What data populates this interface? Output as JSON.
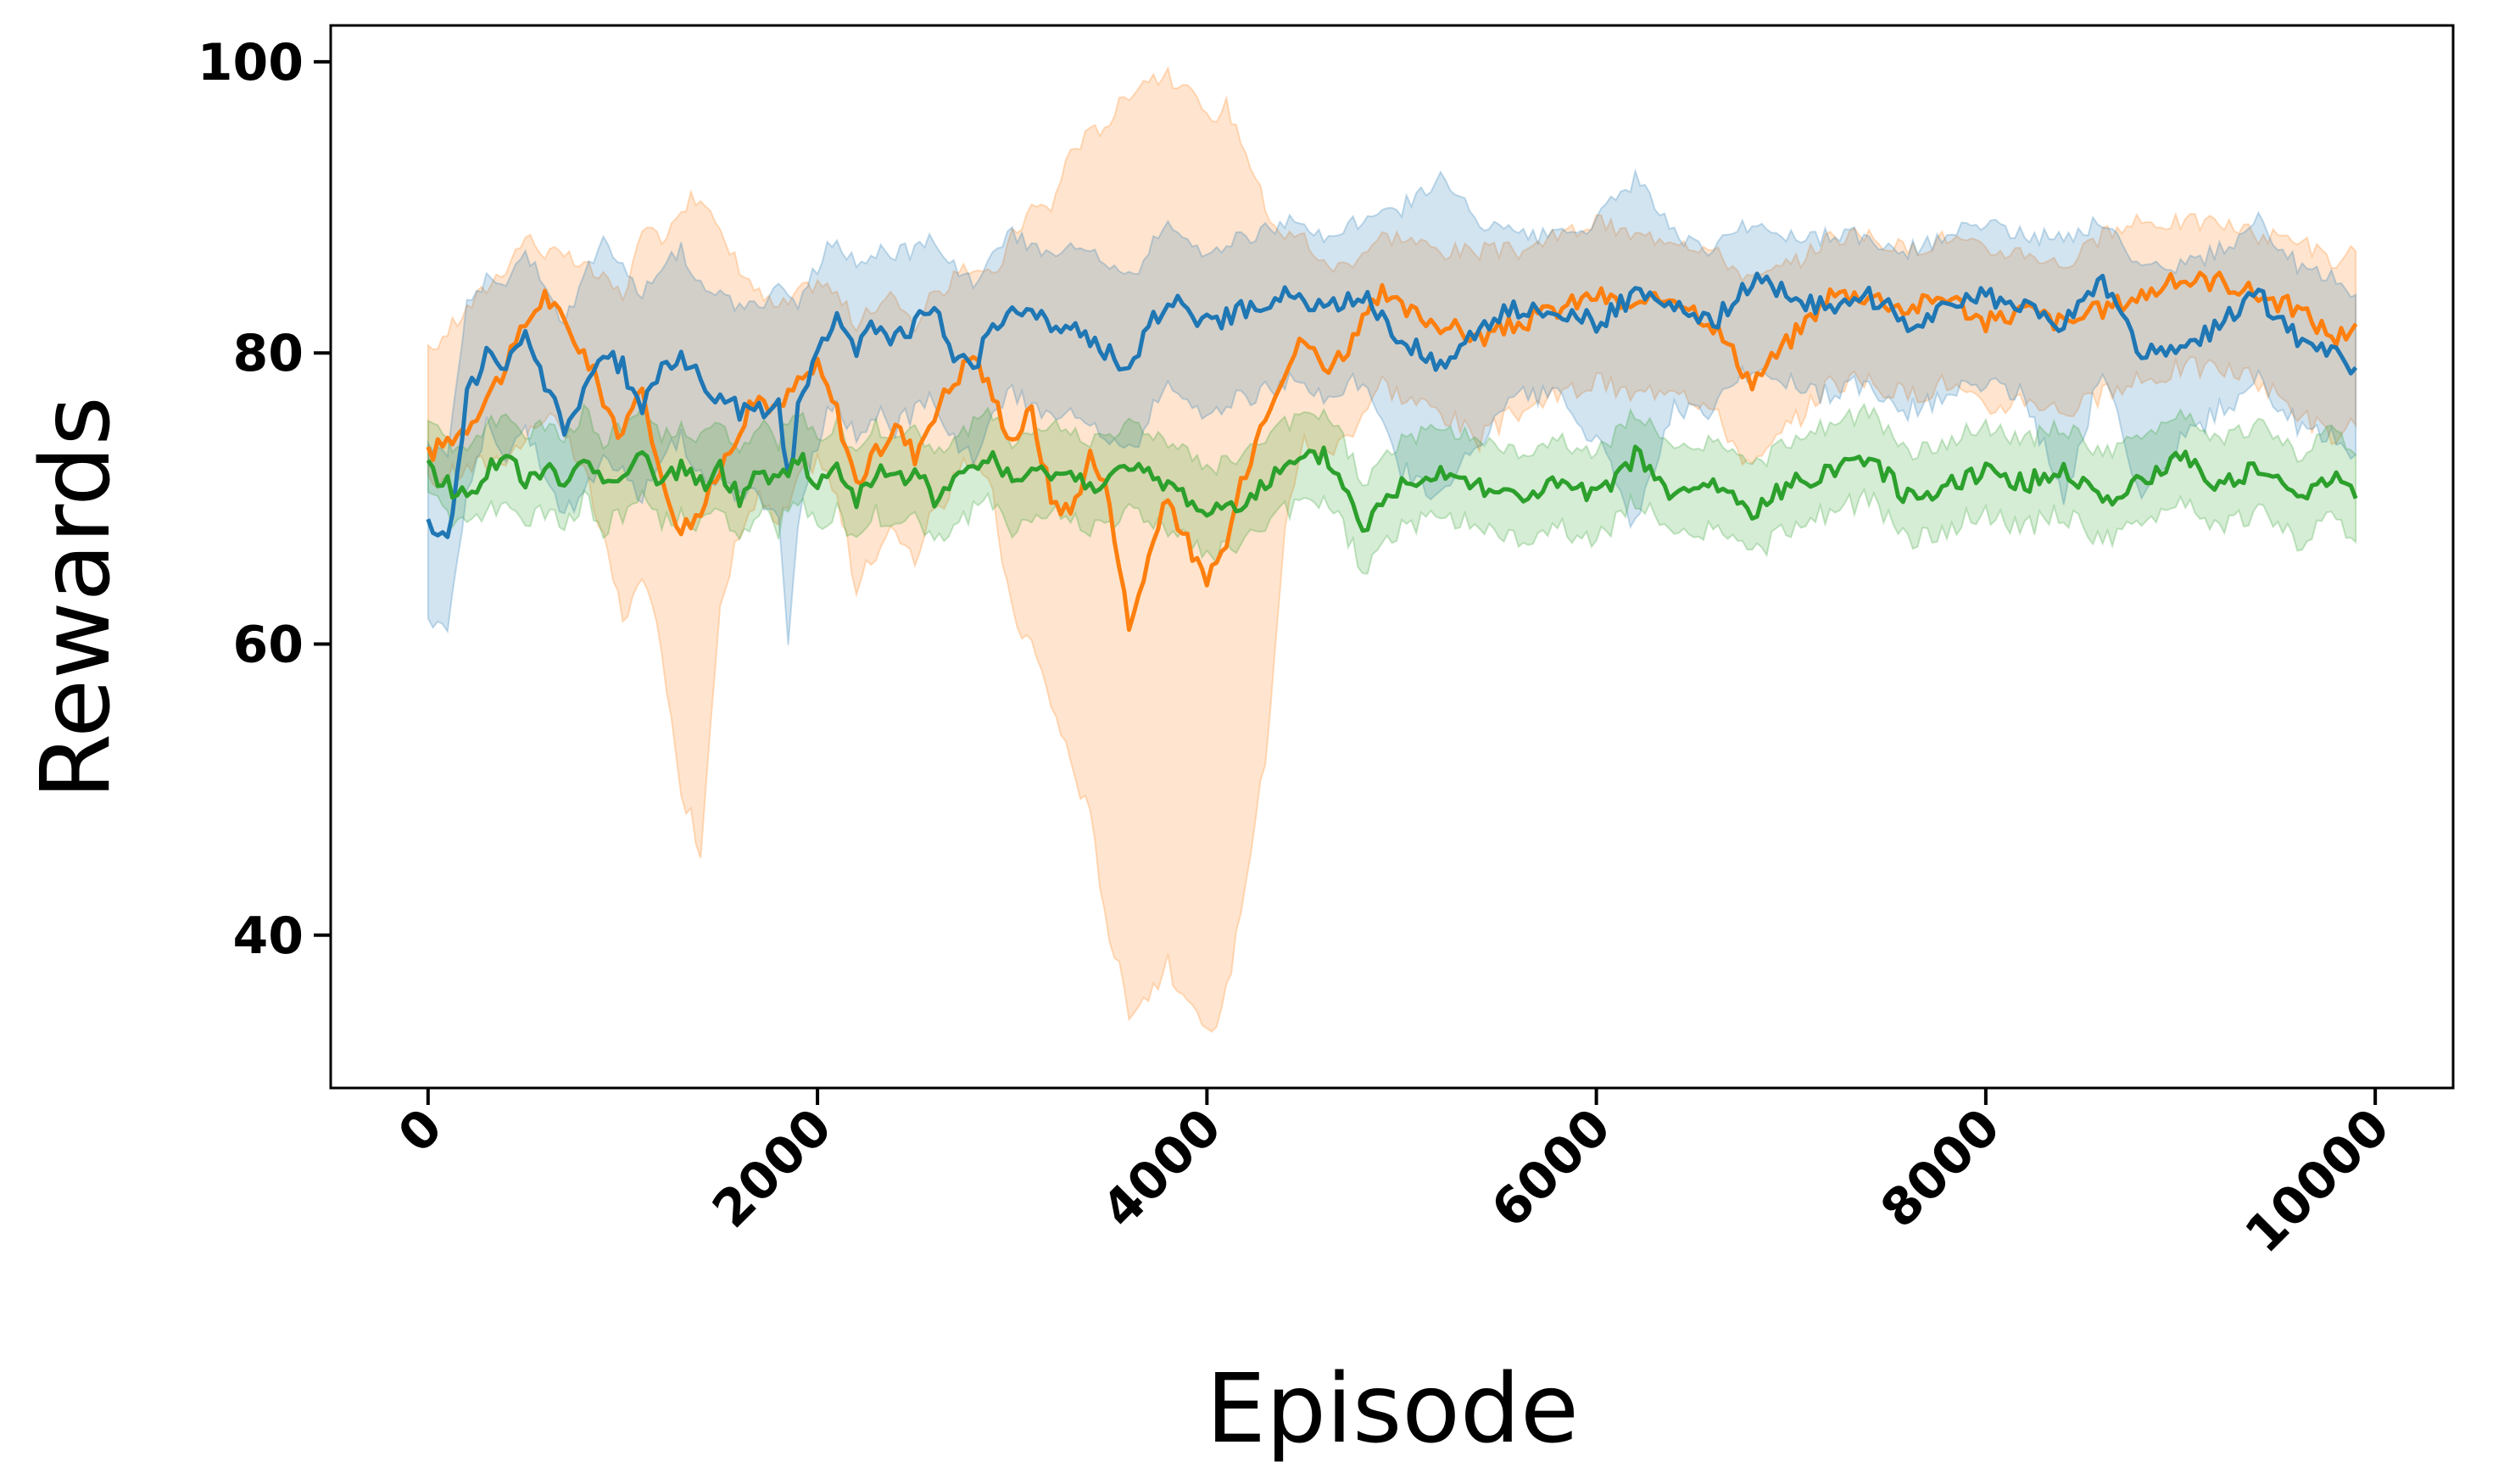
{
  "chart_data": {
    "type": "line",
    "title": "",
    "xlabel": "Episode",
    "ylabel": "Rewards",
    "xlim": [
      -500,
      10400
    ],
    "ylim": [
      29.5,
      102.5
    ],
    "x_ticks": [
      0,
      2000,
      4000,
      6000,
      8000,
      10000
    ],
    "y_ticks": [
      40,
      60,
      80,
      100
    ],
    "x_tick_rotation": 45,
    "grid": false,
    "legend": "none",
    "series": [
      {
        "color": "#ff7f0e",
        "fill_color": "#ff7f0e",
        "points": [
          [
            0,
            73,
            71,
            80
          ],
          [
            200,
            75,
            72,
            83
          ],
          [
            400,
            79,
            73,
            86
          ],
          [
            500,
            82,
            74,
            88
          ],
          [
            600,
            84,
            76,
            87
          ],
          [
            800,
            80,
            72,
            86
          ],
          [
            1000,
            74,
            62,
            84
          ],
          [
            1100,
            78,
            64,
            88
          ],
          [
            1200,
            71,
            60,
            88
          ],
          [
            1300,
            68,
            50,
            90
          ],
          [
            1400,
            69,
            46,
            91
          ],
          [
            1500,
            72,
            62,
            88
          ],
          [
            1600,
            75,
            68,
            86
          ],
          [
            1700,
            77,
            70,
            84
          ],
          [
            1800,
            76,
            68,
            83
          ],
          [
            1900,
            78,
            71,
            84
          ],
          [
            2000,
            79,
            73,
            85
          ],
          [
            2100,
            76,
            70,
            84
          ],
          [
            2200,
            71,
            64,
            82
          ],
          [
            2300,
            73,
            66,
            83
          ],
          [
            2400,
            75,
            68,
            84
          ],
          [
            2500,
            73,
            66,
            82
          ],
          [
            2600,
            76,
            69,
            84
          ],
          [
            2700,
            78,
            71,
            85
          ],
          [
            2800,
            80,
            73,
            86
          ],
          [
            2900,
            77,
            70,
            85
          ],
          [
            3000,
            74,
            62,
            88
          ],
          [
            3100,
            76,
            60,
            90
          ],
          [
            3200,
            70,
            56,
            90
          ],
          [
            3300,
            69,
            52,
            94
          ],
          [
            3400,
            73,
            48,
            95
          ],
          [
            3500,
            70,
            40,
            96
          ],
          [
            3600,
            61,
            35,
            98
          ],
          [
            3700,
            66,
            36,
            99
          ],
          [
            3800,
            70,
            38,
            99
          ],
          [
            3900,
            67,
            35,
            98
          ],
          [
            4000,
            64,
            33,
            96
          ],
          [
            4100,
            67,
            36,
            97
          ],
          [
            4200,
            72,
            44,
            94
          ],
          [
            4300,
            76,
            52,
            90
          ],
          [
            4400,
            79,
            68,
            88
          ],
          [
            4500,
            81,
            74,
            88
          ],
          [
            4600,
            79,
            73,
            86
          ],
          [
            4700,
            80,
            74,
            86
          ],
          [
            4800,
            82,
            76,
            87
          ],
          [
            4900,
            84,
            78,
            88
          ],
          [
            5000,
            83,
            77,
            88
          ],
          [
            5200,
            82,
            76,
            87
          ],
          [
            5400,
            81,
            74,
            87
          ],
          [
            5600,
            82,
            76,
            87
          ],
          [
            5800,
            83,
            77,
            88
          ],
          [
            6000,
            84,
            78,
            89
          ],
          [
            6200,
            83,
            77,
            88
          ],
          [
            6400,
            84,
            78,
            88
          ],
          [
            6600,
            82,
            76,
            87
          ],
          [
            6800,
            78,
            72,
            85
          ],
          [
            7000,
            81,
            75,
            86
          ],
          [
            7200,
            84,
            78,
            88
          ],
          [
            7400,
            84,
            78,
            88
          ],
          [
            7600,
            83,
            77,
            87
          ],
          [
            7800,
            84,
            78,
            88
          ],
          [
            8000,
            82,
            76,
            87
          ],
          [
            8200,
            83,
            77,
            87
          ],
          [
            8400,
            82,
            76,
            86
          ],
          [
            8600,
            83,
            77,
            88
          ],
          [
            8800,
            84,
            78,
            89
          ],
          [
            9000,
            85,
            79,
            89
          ],
          [
            9200,
            85,
            79,
            89
          ],
          [
            9400,
            84,
            78,
            88
          ],
          [
            9600,
            83,
            76,
            88
          ],
          [
            9800,
            81,
            74,
            86
          ],
          [
            9900,
            82,
            75,
            87
          ]
        ]
      },
      {
        "color": "#1f77b4",
        "fill_color": "#1f77b4",
        "points": [
          [
            0,
            68,
            62,
            74
          ],
          [
            100,
            67,
            61,
            73
          ],
          [
            200,
            77,
            71,
            84
          ],
          [
            300,
            80,
            75,
            85
          ],
          [
            400,
            79,
            73,
            85
          ],
          [
            500,
            81,
            75,
            87
          ],
          [
            600,
            78,
            72,
            85
          ],
          [
            700,
            75,
            69,
            82
          ],
          [
            800,
            77,
            70,
            85
          ],
          [
            900,
            80,
            73,
            88
          ],
          [
            1000,
            79,
            72,
            86
          ],
          [
            1100,
            76,
            70,
            84
          ],
          [
            1200,
            79,
            73,
            86
          ],
          [
            1300,
            80,
            74,
            87
          ],
          [
            1400,
            78,
            72,
            85
          ],
          [
            1500,
            77,
            71,
            84
          ],
          [
            1600,
            76,
            70,
            83
          ],
          [
            1700,
            76,
            70,
            83
          ],
          [
            1800,
            77,
            69,
            85
          ],
          [
            1850,
            71,
            60,
            84
          ],
          [
            1900,
            76,
            68,
            83
          ],
          [
            2000,
            80,
            74,
            86
          ],
          [
            2100,
            83,
            77,
            88
          ],
          [
            2200,
            80,
            74,
            86
          ],
          [
            2300,
            82,
            76,
            87
          ],
          [
            2400,
            81,
            75,
            87
          ],
          [
            2500,
            82,
            76,
            87
          ],
          [
            2600,
            83,
            77,
            88
          ],
          [
            2700,
            80,
            74,
            86
          ],
          [
            2800,
            79,
            73,
            85
          ],
          [
            2900,
            82,
            76,
            87
          ],
          [
            3000,
            83,
            77,
            88
          ],
          [
            3200,
            82,
            76,
            87
          ],
          [
            3400,
            81,
            75,
            87
          ],
          [
            3600,
            79,
            73,
            85
          ],
          [
            3800,
            84,
            78,
            89
          ],
          [
            4000,
            82,
            76,
            87
          ],
          [
            4200,
            83,
            77,
            88
          ],
          [
            4400,
            84,
            78,
            89
          ],
          [
            4600,
            83,
            77,
            88
          ],
          [
            4800,
            84,
            78,
            89
          ],
          [
            5000,
            81,
            72,
            90
          ],
          [
            5200,
            79,
            70,
            92
          ],
          [
            5400,
            82,
            74,
            89
          ],
          [
            5600,
            83,
            77,
            88
          ],
          [
            5800,
            83,
            77,
            88
          ],
          [
            6000,
            82,
            74,
            89
          ],
          [
            6200,
            84,
            68,
            92
          ],
          [
            6400,
            83,
            76,
            88
          ],
          [
            6600,
            82,
            76,
            87
          ],
          [
            6800,
            85,
            79,
            89
          ],
          [
            7000,
            84,
            78,
            88
          ],
          [
            7200,
            83,
            77,
            88
          ],
          [
            7400,
            84,
            78,
            88
          ],
          [
            7600,
            82,
            76,
            87
          ],
          [
            7800,
            83,
            77,
            88
          ],
          [
            8000,
            84,
            78,
            89
          ],
          [
            8200,
            83,
            77,
            88
          ],
          [
            8400,
            82,
            70,
            88
          ],
          [
            8600,
            85,
            79,
            89
          ],
          [
            8800,
            80,
            70,
            86
          ],
          [
            9000,
            80,
            74,
            86
          ],
          [
            9200,
            82,
            76,
            87
          ],
          [
            9400,
            84,
            78,
            89
          ],
          [
            9600,
            81,
            75,
            86
          ],
          [
            9800,
            80,
            74,
            85
          ],
          [
            9900,
            79,
            73,
            84
          ]
        ]
      },
      {
        "color": "#2ca02c",
        "fill_color": "#2ca02c",
        "points": [
          [
            0,
            72,
            70,
            75
          ],
          [
            100,
            71,
            69,
            74
          ],
          [
            200,
            70,
            68,
            73
          ],
          [
            300,
            72,
            69,
            75
          ],
          [
            400,
            73,
            70,
            76
          ],
          [
            500,
            71,
            68,
            74
          ],
          [
            600,
            72,
            69,
            75
          ],
          [
            700,
            71,
            68,
            74
          ],
          [
            800,
            73,
            70,
            76
          ],
          [
            900,
            71,
            68,
            74
          ],
          [
            1000,
            72,
            69,
            75
          ],
          [
            1100,
            73,
            70,
            76
          ],
          [
            1200,
            71,
            68,
            74
          ],
          [
            1300,
            72,
            69,
            75
          ],
          [
            1400,
            71,
            68,
            74
          ],
          [
            1500,
            72,
            69,
            75
          ],
          [
            1600,
            70,
            67,
            73
          ],
          [
            1700,
            72,
            69,
            75
          ],
          [
            1800,
            71,
            68,
            74
          ],
          [
            1900,
            73,
            70,
            76
          ],
          [
            2000,
            71,
            68,
            74
          ],
          [
            2100,
            72,
            69,
            75
          ],
          [
            2200,
            70,
            67,
            73
          ],
          [
            2300,
            72,
            69,
            75
          ],
          [
            2400,
            71,
            68,
            74
          ],
          [
            2500,
            72,
            69,
            75
          ],
          [
            2600,
            70,
            67,
            73
          ],
          [
            2700,
            71,
            68,
            74
          ],
          [
            2800,
            72,
            69,
            75
          ],
          [
            2900,
            73,
            70,
            76
          ],
          [
            3000,
            71,
            68,
            74
          ],
          [
            3200,
            72,
            69,
            75
          ],
          [
            3400,
            71,
            68,
            74
          ],
          [
            3600,
            72,
            69,
            75
          ],
          [
            3800,
            71,
            68,
            74
          ],
          [
            4000,
            69,
            66,
            72
          ],
          [
            4200,
            70,
            67,
            73
          ],
          [
            4400,
            72,
            69,
            75
          ],
          [
            4600,
            73,
            70,
            76
          ],
          [
            4700,
            71,
            68,
            74
          ],
          [
            4800,
            68,
            65,
            71
          ],
          [
            5000,
            71,
            68,
            74
          ],
          [
            5200,
            72,
            69,
            75
          ],
          [
            5400,
            71,
            68,
            74
          ],
          [
            5600,
            70,
            67,
            73
          ],
          [
            5800,
            71,
            68,
            74
          ],
          [
            6000,
            70,
            67,
            73
          ],
          [
            6200,
            73,
            70,
            76
          ],
          [
            6400,
            70,
            67,
            73
          ],
          [
            6600,
            71,
            68,
            74
          ],
          [
            6800,
            69,
            66,
            72
          ],
          [
            7000,
            71,
            68,
            74
          ],
          [
            7200,
            72,
            69,
            75
          ],
          [
            7400,
            73,
            70,
            76
          ],
          [
            7600,
            70,
            67,
            73
          ],
          [
            7800,
            71,
            68,
            74
          ],
          [
            8000,
            72,
            69,
            75
          ],
          [
            8200,
            71,
            68,
            74
          ],
          [
            8400,
            72,
            69,
            75
          ],
          [
            8600,
            70,
            67,
            73
          ],
          [
            8800,
            71,
            68,
            74
          ],
          [
            9000,
            73,
            70,
            76
          ],
          [
            9200,
            71,
            68,
            74
          ],
          [
            9400,
            72,
            69,
            75
          ],
          [
            9600,
            70,
            67,
            73
          ],
          [
            9800,
            72,
            69,
            75
          ],
          [
            9900,
            70,
            67,
            73
          ]
        ]
      }
    ]
  }
}
